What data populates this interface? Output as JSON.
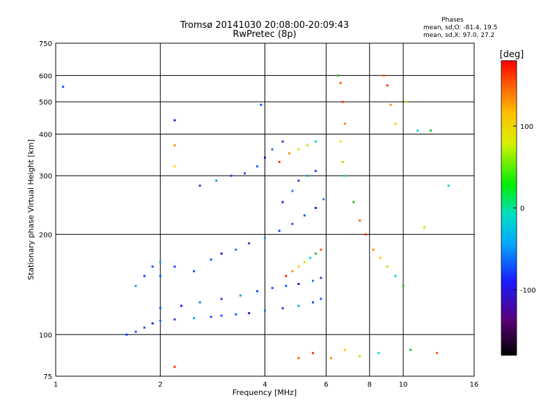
{
  "chart_data": {
    "type": "scatter",
    "title": "Tromsø 20141030 20:08:00-20:09:43",
    "subtitle": "RwPretec (8p)",
    "xlabel": "Frequency [MHz]",
    "ylabel": "Stationary phase Virtual Height [km]",
    "x_scale": "log",
    "y_scale": "log",
    "xlim": [
      1,
      16
    ],
    "ylim": [
      75,
      750
    ],
    "x_ticks": [
      1,
      2,
      4,
      6,
      8,
      10,
      16
    ],
    "y_ticks": [
      75,
      100,
      200,
      300,
      400,
      500,
      600,
      750
    ],
    "grid": true,
    "legend_title": "Phases",
    "legend_lines": [
      "mean, sd,O: -81.4, 19.5",
      "mean, sd,X:  97.0, 27.2"
    ],
    "colorbar": {
      "label": "[deg]",
      "ticks": [
        100,
        0,
        -100
      ],
      "range": [
        -180,
        180
      ],
      "colormap": "rainbow"
    },
    "series": [
      {
        "note": "O-mode traces (mostly blue)",
        "points": [
          [
            1.6,
            100
          ],
          [
            1.7,
            102
          ],
          [
            1.8,
            105
          ],
          [
            1.9,
            108
          ],
          [
            2.0,
            110
          ],
          [
            2.2,
            111
          ],
          [
            2.5,
            112
          ],
          [
            2.8,
            113
          ],
          [
            3.0,
            114
          ],
          [
            3.3,
            115
          ],
          [
            3.6,
            116
          ],
          [
            4.0,
            118
          ],
          [
            4.5,
            120
          ],
          [
            5.0,
            122
          ],
          [
            5.5,
            125
          ],
          [
            5.8,
            128
          ],
          [
            2.0,
            120
          ],
          [
            2.3,
            122
          ],
          [
            2.6,
            125
          ],
          [
            3.0,
            128
          ],
          [
            3.4,
            131
          ],
          [
            3.8,
            135
          ],
          [
            4.2,
            138
          ],
          [
            4.6,
            140
          ],
          [
            5.0,
            142
          ],
          [
            5.5,
            145
          ],
          [
            5.8,
            148
          ],
          [
            2.0,
            165
          ],
          [
            2.2,
            160
          ],
          [
            2.5,
            155
          ],
          [
            2.8,
            168
          ],
          [
            3.0,
            175
          ],
          [
            3.3,
            180
          ],
          [
            3.6,
            188
          ],
          [
            4.0,
            195
          ],
          [
            4.4,
            205
          ],
          [
            4.8,
            215
          ],
          [
            5.2,
            228
          ],
          [
            5.6,
            240
          ],
          [
            5.9,
            255
          ],
          [
            2.6,
            280
          ],
          [
            2.9,
            290
          ],
          [
            3.2,
            300
          ],
          [
            3.5,
            305
          ],
          [
            3.8,
            320
          ],
          [
            4.0,
            340
          ],
          [
            4.2,
            360
          ],
          [
            4.5,
            380
          ],
          [
            1.7,
            140
          ],
          [
            1.8,
            150
          ],
          [
            1.9,
            160
          ],
          [
            2.0,
            150
          ],
          [
            4.5,
            250
          ],
          [
            4.8,
            270
          ],
          [
            5.0,
            290
          ],
          [
            5.3,
            300
          ],
          [
            5.6,
            310
          ],
          [
            1.05,
            555
          ],
          [
            3.9,
            490
          ],
          [
            2.2,
            440
          ]
        ]
      },
      {
        "note": "X-mode and scattered echoes (cyan to red)",
        "points": [
          [
            4.6,
            150
          ],
          [
            4.8,
            155
          ],
          [
            5.0,
            160
          ],
          [
            5.2,
            165
          ],
          [
            5.4,
            170
          ],
          [
            5.6,
            175
          ],
          [
            5.8,
            180
          ],
          [
            4.4,
            330
          ],
          [
            4.7,
            350
          ],
          [
            5.0,
            360
          ],
          [
            5.3,
            370
          ],
          [
            5.6,
            380
          ],
          [
            6.5,
            600
          ],
          [
            6.6,
            570
          ],
          [
            6.7,
            500
          ],
          [
            6.8,
            430
          ],
          [
            6.6,
            380
          ],
          [
            6.7,
            330
          ],
          [
            6.8,
            300
          ],
          [
            7.2,
            250
          ],
          [
            7.5,
            220
          ],
          [
            7.8,
            200
          ],
          [
            8.2,
            180
          ],
          [
            8.6,
            170
          ],
          [
            9.0,
            160
          ],
          [
            9.5,
            150
          ],
          [
            10.0,
            140
          ],
          [
            8.8,
            600
          ],
          [
            9.0,
            560
          ],
          [
            9.2,
            490
          ],
          [
            9.5,
            430
          ],
          [
            10.2,
            500
          ],
          [
            11.0,
            410
          ],
          [
            12.0,
            410
          ],
          [
            5.0,
            85
          ],
          [
            5.5,
            88
          ],
          [
            6.2,
            85
          ],
          [
            6.8,
            90
          ],
          [
            7.5,
            86
          ],
          [
            8.5,
            88
          ],
          [
            10.5,
            90
          ],
          [
            12.5,
            88
          ],
          [
            2.2,
            80
          ],
          [
            2.2,
            370
          ],
          [
            2.2,
            320
          ],
          [
            11.5,
            210
          ],
          [
            13.5,
            280
          ]
        ]
      }
    ]
  }
}
